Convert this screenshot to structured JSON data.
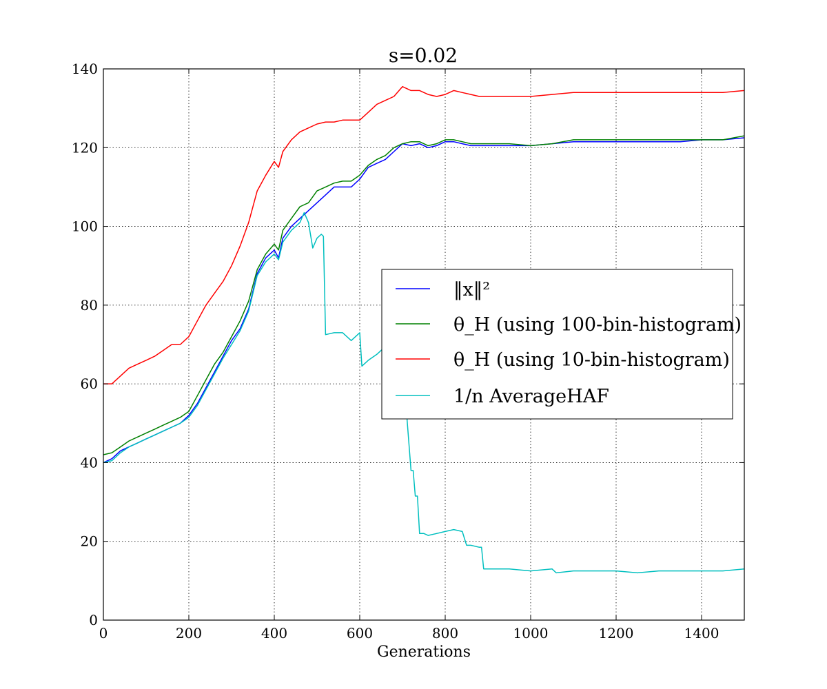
{
  "chart_data": {
    "type": "line",
    "title": "s=0.02",
    "xlabel": "Generations",
    "ylabel": "",
    "xlim": [
      0,
      1500
    ],
    "ylim": [
      0,
      140
    ],
    "xticks": [
      0,
      200,
      400,
      600,
      800,
      1000,
      1200,
      1400
    ],
    "yticks": [
      0,
      20,
      40,
      60,
      80,
      100,
      120,
      140
    ],
    "xtick_labels": [
      "0",
      "200",
      "400",
      "600",
      "800",
      "1000",
      "1200",
      "1400"
    ],
    "ytick_labels": [
      "0",
      "20",
      "40",
      "60",
      "80",
      "100",
      "120",
      "140"
    ],
    "grid": true,
    "legend_position": "center-right",
    "series": [
      {
        "name": "‖x‖²",
        "color": "#0000ff",
        "x": [
          0,
          20,
          40,
          60,
          80,
          100,
          120,
          140,
          160,
          180,
          200,
          220,
          240,
          260,
          280,
          300,
          320,
          340,
          360,
          380,
          400,
          410,
          420,
          440,
          460,
          480,
          500,
          520,
          540,
          560,
          580,
          600,
          620,
          640,
          660,
          680,
          700,
          720,
          740,
          760,
          780,
          800,
          820,
          840,
          860,
          880,
          900,
          950,
          1000,
          1050,
          1100,
          1150,
          1200,
          1250,
          1300,
          1350,
          1400,
          1450,
          1500
        ],
        "y": [
          40,
          41,
          43,
          44,
          45,
          46,
          47,
          48,
          49,
          50,
          52,
          55,
          59,
          63,
          67,
          71,
          74,
          79,
          88,
          92,
          94,
          92,
          97,
          100,
          102,
          104,
          106,
          108,
          110,
          110,
          110,
          112,
          115,
          116,
          117,
          119,
          121,
          120.5,
          121,
          120,
          120.5,
          121.5,
          121.5,
          121,
          120.5,
          120.5,
          120.5,
          120.5,
          120.5,
          121,
          121.5,
          121.5,
          121.5,
          121.5,
          121.5,
          121.5,
          122,
          122,
          122.5
        ]
      },
      {
        "name": "θ_H (using 100-bin-histogram)",
        "color": "#008000",
        "x": [
          0,
          20,
          40,
          60,
          80,
          100,
          120,
          140,
          160,
          180,
          200,
          220,
          240,
          260,
          280,
          300,
          320,
          340,
          360,
          380,
          400,
          410,
          420,
          440,
          460,
          480,
          500,
          520,
          540,
          560,
          580,
          600,
          620,
          640,
          660,
          680,
          700,
          720,
          740,
          760,
          780,
          800,
          820,
          840,
          860,
          880,
          900,
          950,
          1000,
          1050,
          1100,
          1150,
          1200,
          1250,
          1300,
          1350,
          1400,
          1450,
          1500
        ],
        "y": [
          42,
          42.5,
          44,
          45.5,
          46.5,
          47.5,
          48.5,
          49.5,
          50.5,
          51.5,
          53,
          57,
          61,
          65,
          68,
          72,
          76,
          81,
          89,
          93,
          95.5,
          94,
          99,
          102,
          105,
          106,
          109,
          110,
          111,
          111.5,
          111.5,
          113,
          115.5,
          117,
          118,
          120,
          121,
          121.5,
          121.5,
          120.5,
          121,
          122,
          122,
          121.5,
          121,
          121,
          121,
          121,
          120.5,
          121,
          122,
          122,
          122,
          122,
          122,
          122,
          122,
          122,
          123
        ]
      },
      {
        "name": "θ_H (using 10-bin-histogram)",
        "color": "#ff0000",
        "x": [
          0,
          20,
          40,
          60,
          80,
          100,
          120,
          140,
          160,
          180,
          200,
          220,
          240,
          260,
          280,
          300,
          320,
          340,
          360,
          380,
          400,
          410,
          420,
          440,
          460,
          480,
          500,
          520,
          540,
          560,
          580,
          600,
          620,
          640,
          660,
          680,
          700,
          720,
          740,
          760,
          780,
          800,
          820,
          840,
          860,
          880,
          900,
          950,
          1000,
          1050,
          1100,
          1150,
          1200,
          1250,
          1300,
          1350,
          1400,
          1450,
          1500
        ],
        "y": [
          60,
          60,
          62,
          64,
          65,
          66,
          67,
          68.5,
          70,
          70,
          72,
          76,
          80,
          83,
          86,
          90,
          95,
          101,
          109,
          113,
          116.5,
          115,
          119,
          122,
          124,
          125,
          126,
          126.5,
          126.5,
          127,
          127,
          127,
          129,
          131,
          132,
          133,
          135.5,
          134.5,
          134.5,
          133.5,
          133,
          133.5,
          134.5,
          134,
          133.5,
          133,
          133,
          133,
          133,
          133.5,
          134,
          134,
          134,
          134,
          134,
          134,
          134,
          134,
          134.5
        ]
      },
      {
        "name": "1/n AverageHAF",
        "color": "#00bfbf",
        "x": [
          0,
          20,
          40,
          60,
          80,
          100,
          120,
          140,
          160,
          180,
          200,
          220,
          240,
          260,
          280,
          300,
          320,
          340,
          360,
          380,
          400,
          410,
          420,
          440,
          460,
          470,
          480,
          490,
          500,
          510,
          515,
          520,
          540,
          560,
          580,
          600,
          605,
          620,
          640,
          660,
          680,
          690,
          700,
          710,
          720,
          725,
          730,
          735,
          740,
          750,
          760,
          780,
          800,
          820,
          840,
          850,
          860,
          880,
          885,
          890,
          900,
          950,
          1000,
          1050,
          1060,
          1100,
          1150,
          1200,
          1250,
          1300,
          1350,
          1400,
          1450,
          1500
        ],
        "y": [
          40,
          40.5,
          42.5,
          44,
          45,
          46,
          47,
          48,
          49,
          50,
          51.5,
          54.5,
          58.5,
          62.5,
          66.5,
          70,
          73.5,
          78.5,
          87.5,
          91,
          93,
          91.5,
          96,
          99,
          101,
          103.5,
          101,
          94.5,
          97,
          98,
          97.5,
          72.5,
          73,
          73,
          71,
          73,
          64.5,
          66,
          67.5,
          69.5,
          70,
          64,
          60,
          52,
          38,
          38,
          31.5,
          31.5,
          22,
          22,
          21.5,
          22,
          22.5,
          23,
          22.5,
          19,
          19,
          18.5,
          18.5,
          13,
          13,
          13,
          12.5,
          13,
          12,
          12.5,
          12.5,
          12.5,
          12,
          12.5,
          12.5,
          12.5,
          12.5,
          13
        ]
      }
    ]
  },
  "legend": {
    "entries": [
      {
        "name": "‖x‖²",
        "color": "#0000ff"
      },
      {
        "name": "θ_H (using 100-bin-histogram)",
        "color": "#008000"
      },
      {
        "name": "θ_H (using 10-bin-histogram)",
        "color": "#ff0000"
      },
      {
        "name": "1/n AverageHAF",
        "color": "#00bfbf"
      }
    ]
  }
}
